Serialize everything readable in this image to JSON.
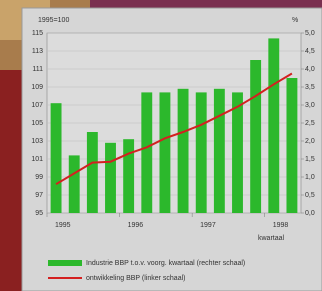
{
  "chart_data": {
    "type": "bar-line",
    "left_label": "1995=100",
    "right_label": "%",
    "x_note": "kwartaal",
    "categories": [
      "1995",
      null,
      null,
      null,
      "1996",
      null,
      null,
      null,
      "1997",
      null,
      null,
      null,
      "1998",
      null
    ],
    "series": [
      {
        "name": "Industrie BBP t.o.v. voorg. kwartaal (rechter schaal)",
        "color": "#2cb82c",
        "axis": "y2",
        "values": [
          3.05,
          1.6,
          2.25,
          1.95,
          2.05,
          3.35,
          3.35,
          3.45,
          3.35,
          3.45,
          3.35,
          4.25,
          4.85,
          3.75
        ]
      },
      {
        "name": "ontwikkeling BBP (linker schaal)",
        "color": "#d42020",
        "values": [
          98.2,
          99.4,
          100.6,
          100.7,
          101.6,
          102.3,
          103.3,
          104.0,
          104.8,
          105.8,
          106.8,
          108.0,
          109.3,
          110.5
        ]
      }
    ],
    "ylim": [
      95,
      115
    ],
    "yticks": [
      95,
      97,
      99,
      101,
      103,
      105,
      107,
      109,
      111,
      113,
      115
    ],
    "y2lim": [
      0,
      5
    ],
    "y2ticks": [
      {
        "value": 0,
        "label": "0,0"
      },
      {
        "value": 0.5,
        "label": "0,5"
      },
      {
        "value": 1,
        "label": "1,0"
      },
      {
        "value": 1.5,
        "label": "1,5"
      },
      {
        "value": 2,
        "label": "2,0"
      },
      {
        "value": 2.5,
        "label": "2,5"
      },
      {
        "value": 3,
        "label": "3,0"
      },
      {
        "value": 3.5,
        "label": "3,5"
      },
      {
        "value": 4,
        "label": "4,0"
      },
      {
        "value": 4.5,
        "label": "4,5"
      },
      {
        "value": 5,
        "label": "5,0"
      }
    ],
    "grid": true
  }
}
